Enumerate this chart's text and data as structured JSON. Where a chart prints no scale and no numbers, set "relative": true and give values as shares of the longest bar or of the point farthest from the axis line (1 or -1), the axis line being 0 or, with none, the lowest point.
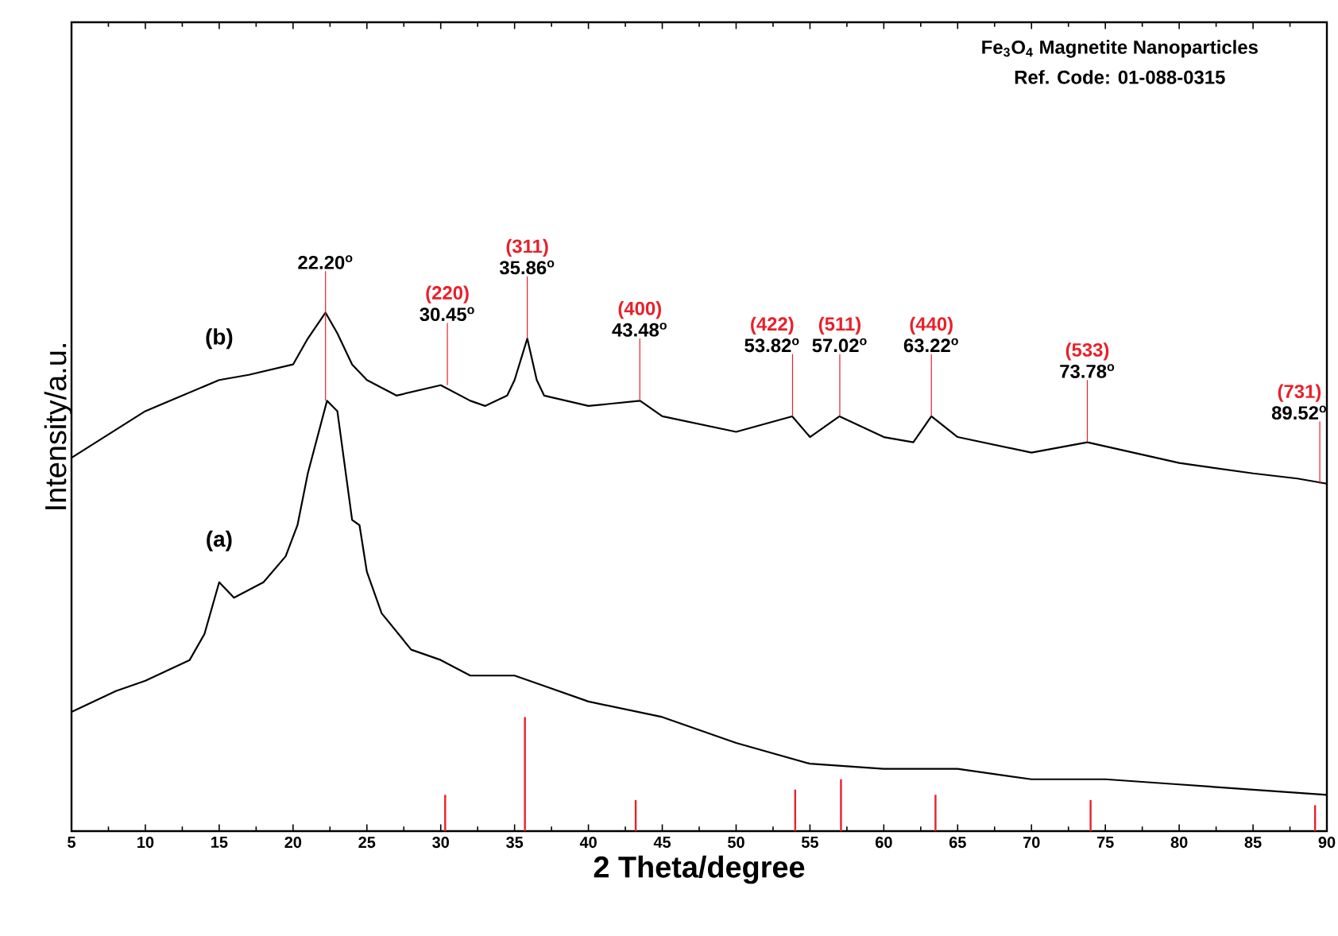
{
  "chart_data": {
    "type": "line",
    "relative": true,
    "title": "Fe$_{3}$O$_{4}$ Magnetite Nanoparticles",
    "subtitle": "Ref. Code: 01-088-0315",
    "xlabel": "2 Theta/degree",
    "ylabel": "Intensity/a.u.",
    "xlim": [
      5,
      90
    ],
    "xticks": [
      5,
      10,
      15,
      20,
      25,
      30,
      35,
      40,
      45,
      50,
      55,
      60,
      65,
      70,
      75,
      80,
      85,
      90
    ],
    "series": [
      {
        "name": "(b)",
        "color": "#000000",
        "x": [
          5,
          10,
          15,
          17,
          20,
          21,
          22.2,
          23,
          24,
          25,
          27,
          30,
          32,
          33,
          34.5,
          35,
          35.86,
          36.5,
          37,
          40,
          43.5,
          45,
          50,
          53.8,
          55,
          57,
          60,
          62,
          63.22,
          65,
          70,
          73.78,
          80,
          85,
          88,
          90
        ],
        "values": [
          0.72,
          0.81,
          0.87,
          0.88,
          0.9,
          0.95,
          1.0,
          0.96,
          0.9,
          0.87,
          0.84,
          0.86,
          0.83,
          0.82,
          0.84,
          0.87,
          0.95,
          0.87,
          0.84,
          0.82,
          0.83,
          0.8,
          0.77,
          0.8,
          0.76,
          0.8,
          0.76,
          0.75,
          0.8,
          0.76,
          0.73,
          0.75,
          0.71,
          0.69,
          0.68,
          0.67
        ]
      },
      {
        "name": "(a)",
        "color": "#000000",
        "x": [
          5,
          8,
          10,
          13,
          14,
          15,
          16,
          18,
          19.5,
          20.3,
          21,
          22.3,
          23,
          24,
          24.5,
          25,
          26,
          28,
          30,
          32,
          35,
          37,
          40,
          45,
          50,
          55,
          60,
          65,
          70,
          75,
          80,
          85,
          90
        ],
        "values": [
          0.23,
          0.27,
          0.29,
          0.33,
          0.38,
          0.48,
          0.45,
          0.48,
          0.53,
          0.59,
          0.69,
          0.83,
          0.81,
          0.6,
          0.59,
          0.5,
          0.42,
          0.35,
          0.33,
          0.3,
          0.3,
          0.28,
          0.25,
          0.22,
          0.17,
          0.13,
          0.12,
          0.12,
          0.1,
          0.1,
          0.09,
          0.08,
          0.07
        ]
      },
      {
        "type": "bar",
        "color": "#e8202a",
        "x": [
          30.3,
          35.7,
          43.2,
          54.0,
          57.1,
          63.5,
          74.0,
          89.2
        ],
        "values": [
          0.07,
          0.22,
          0.06,
          0.08,
          0.1,
          0.07,
          0.06,
          0.05
        ]
      }
    ],
    "annotations": [
      {
        "text": "22.20$^{o}$",
        "x": 22.2,
        "y": 0.83
      },
      {
        "text": "(220)",
        "x": 30.45,
        "y": 0.86
      },
      {
        "text": "30.45$^{o}$",
        "x": 30.45,
        "y": 0.86
      },
      {
        "text": "(311)",
        "x": 35.86,
        "y": 0.95
      },
      {
        "text": "35.86$^{o}$",
        "x": 35.86,
        "y": 0.95
      },
      {
        "text": "(400)",
        "x": 43.48,
        "y": 0.83
      },
      {
        "text": "43.48$^{o}$",
        "x": 43.48,
        "y": 0.83
      },
      {
        "text": "(422)",
        "x": 53.82,
        "y": 0.8
      },
      {
        "text": "53.82$^{o}$",
        "x": 53.82,
        "y": 0.8
      },
      {
        "text": "(511)",
        "x": 57.02,
        "y": 0.8
      },
      {
        "text": "57.02$^{o}$",
        "x": 57.02,
        "y": 0.8
      },
      {
        "text": "(440)",
        "x": 63.22,
        "y": 0.8
      },
      {
        "text": "63.22$^{o}$",
        "x": 63.22,
        "y": 0.8
      },
      {
        "text": "(533)",
        "x": 73.78,
        "y": 0.75
      },
      {
        "text": "73.78$^{o}$",
        "x": 73.78,
        "y": 0.75
      },
      {
        "text": "(731)",
        "x": 89.52,
        "y": 0.67
      },
      {
        "text": "89.52$^{o}$",
        "x": 89.52,
        "y": 0.67
      }
    ]
  }
}
